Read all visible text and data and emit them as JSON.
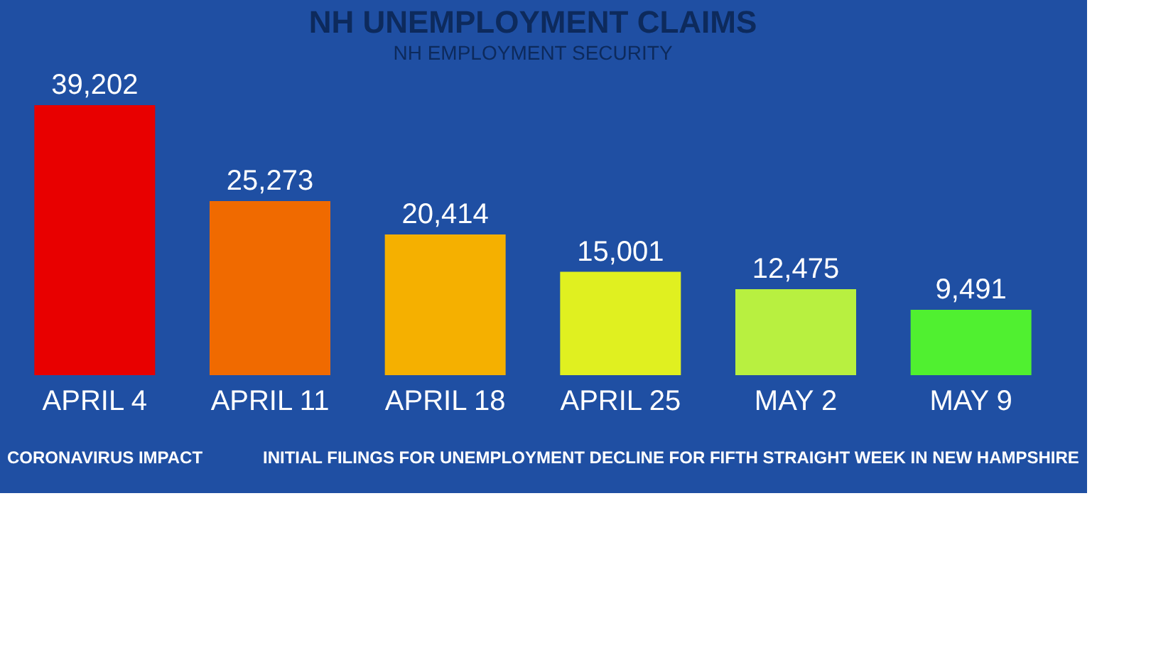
{
  "chart_data": {
    "type": "bar",
    "title": "NH UNEMPLOYMENT CLAIMS",
    "subtitle": "NH EMPLOYMENT SECURITY",
    "categories": [
      "APRIL 4",
      "APRIL 11",
      "APRIL 18",
      "APRIL 25",
      "MAY 2",
      "MAY 9"
    ],
    "values": [
      39202,
      25273,
      20414,
      15001,
      12475,
      9491
    ],
    "value_labels": [
      "39,202",
      "25,273",
      "20,414",
      "15,001",
      "12,475",
      "9,491"
    ],
    "colors": [
      "#e80000",
      "#f06a00",
      "#f5b000",
      "#e0f020",
      "#b8f040",
      "#50f030"
    ],
    "annotations": [
      "CORONAVIRUS IMPACT",
      "INITIAL FILINGS FOR UNEMPLOYMENT DECLINE FOR FIFTH STRAIGHT WEEK IN NEW HAMPSHIRE"
    ]
  }
}
